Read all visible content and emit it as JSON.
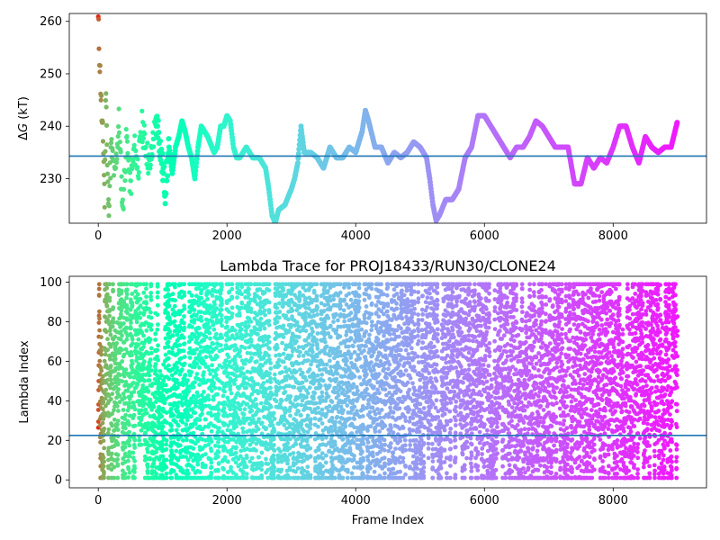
{
  "chart_data": [
    {
      "type": "scatter",
      "title": "",
      "xlabel": "",
      "ylabel": "ΔG (kT)",
      "ylabel_symbol": "Δ",
      "ylabel_var": "G",
      "ylabel_unit": " (kT)",
      "xlim": [
        -450,
        9450
      ],
      "ylim": [
        221.5,
        261.5
      ],
      "xticks": [
        0,
        2000,
        4000,
        6000,
        8000
      ],
      "yticks": [
        230,
        240,
        250,
        260
      ],
      "hline": 234.3,
      "hline_color": "#1f77b4",
      "colormap": "rainbow",
      "series": [
        {
          "segments": [
            [
              0,
              260
            ],
            [
              30,
              250
            ],
            [
              60,
              240
            ],
            [
              80,
              236
            ],
            [
              100,
              226
            ],
            [
              120,
              249
            ],
            [
              140,
              232
            ],
            [
              160,
              224
            ],
            [
              200,
              236
            ],
            [
              260,
              230
            ],
            [
              320,
              241
            ],
            [
              380,
              224
            ],
            [
              440,
              238
            ],
            [
              500,
              228
            ],
            [
              560,
              236
            ],
            [
              620,
              232
            ],
            [
              680,
              240
            ],
            [
              740,
              236
            ],
            [
              800,
              232
            ],
            [
              860,
              238
            ],
            [
              920,
              241
            ],
            [
              980,
              234
            ],
            [
              1040,
              228
            ],
            [
              1100,
              236
            ],
            [
              1150,
              231
            ],
            [
              1200,
              236
            ],
            [
              1250,
              238
            ],
            [
              1300,
              241
            ],
            [
              1350,
              239
            ],
            [
              1400,
              236
            ],
            [
              1450,
              234
            ],
            [
              1500,
              230
            ],
            [
              1550,
              236
            ],
            [
              1600,
              240
            ],
            [
              1700,
              238
            ],
            [
              1800,
              235
            ],
            [
              1850,
              236
            ],
            [
              1900,
              240
            ],
            [
              1950,
              240
            ],
            [
              2000,
              242
            ],
            [
              2050,
              241
            ],
            [
              2100,
              236
            ],
            [
              2150,
              234
            ],
            [
              2200,
              234
            ],
            [
              2300,
              236
            ],
            [
              2400,
              234
            ],
            [
              2500,
              234
            ],
            [
              2600,
              232
            ],
            [
              2650,
              228
            ],
            [
              2700,
              223
            ],
            [
              2750,
              221.5
            ],
            [
              2800,
              224
            ],
            [
              2900,
              225
            ],
            [
              3000,
              228
            ],
            [
              3050,
              230
            ],
            [
              3100,
              233
            ],
            [
              3150,
              240
            ],
            [
              3200,
              235
            ],
            [
              3300,
              235
            ],
            [
              3400,
              234
            ],
            [
              3500,
              232
            ],
            [
              3600,
              236
            ],
            [
              3700,
              234
            ],
            [
              3800,
              234
            ],
            [
              3900,
              236
            ],
            [
              4000,
              235
            ],
            [
              4100,
              239
            ],
            [
              4150,
              243
            ],
            [
              4200,
              241
            ],
            [
              4300,
              236
            ],
            [
              4400,
              236
            ],
            [
              4500,
              233
            ],
            [
              4600,
              235
            ],
            [
              4700,
              234
            ],
            [
              4800,
              235
            ],
            [
              4900,
              237
            ],
            [
              5000,
              236
            ],
            [
              5100,
              234
            ],
            [
              5150,
              230
            ],
            [
              5200,
              225
            ],
            [
              5250,
              222
            ],
            [
              5300,
              223
            ],
            [
              5400,
              226
            ],
            [
              5500,
              226
            ],
            [
              5600,
              228
            ],
            [
              5700,
              234
            ],
            [
              5800,
              236
            ],
            [
              5900,
              242
            ],
            [
              6000,
              242
            ],
            [
              6100,
              240
            ],
            [
              6200,
              238
            ],
            [
              6300,
              236
            ],
            [
              6400,
              234
            ],
            [
              6500,
              236
            ],
            [
              6600,
              236
            ],
            [
              6700,
              238
            ],
            [
              6800,
              241
            ],
            [
              6900,
              240
            ],
            [
              7000,
              238
            ],
            [
              7100,
              236
            ],
            [
              7200,
              236
            ],
            [
              7300,
              236
            ],
            [
              7400,
              229
            ],
            [
              7500,
              229
            ],
            [
              7600,
              234
            ],
            [
              7700,
              232
            ],
            [
              7800,
              234
            ],
            [
              7900,
              233
            ],
            [
              8000,
              236
            ],
            [
              8100,
              240
            ],
            [
              8200,
              240
            ],
            [
              8300,
              236
            ],
            [
              8400,
              233
            ],
            [
              8500,
              238
            ],
            [
              8600,
              236
            ],
            [
              8700,
              235
            ],
            [
              8800,
              236
            ],
            [
              8900,
              236
            ],
            [
              9000,
              241
            ]
          ]
        }
      ]
    },
    {
      "type": "scatter",
      "title": "Lambda Trace for PROJ18433/RUN30/CLONE24",
      "xlabel": "Frame Index",
      "ylabel": "Lambda Index",
      "xlim": [
        -450,
        9450
      ],
      "ylim": [
        -4,
        103
      ],
      "xticks": [
        0,
        2000,
        4000,
        6000,
        8000
      ],
      "yticks": [
        0,
        20,
        40,
        60,
        80,
        100
      ],
      "hline": 22.5,
      "hline_color": "#1f77b4",
      "colormap": "rainbow",
      "n_points": 9000,
      "points_range": {
        "x": [
          0,
          9000
        ],
        "y": [
          0,
          99
        ]
      }
    }
  ]
}
